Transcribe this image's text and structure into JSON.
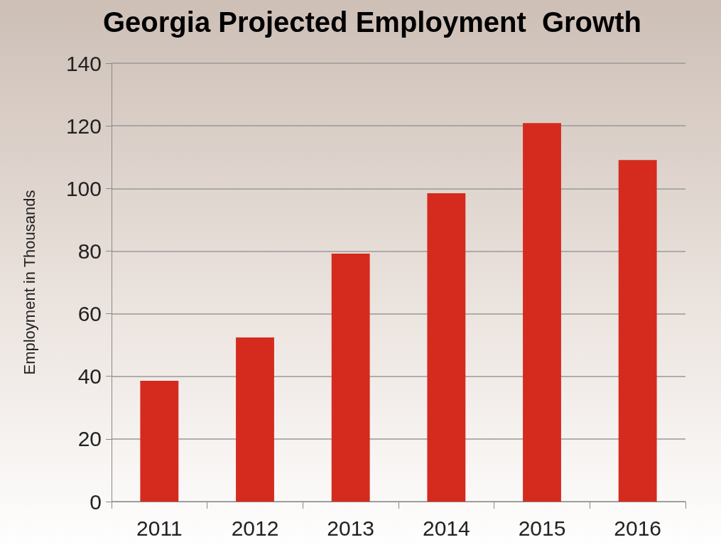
{
  "chart_data": {
    "type": "bar",
    "title": "Georgia Projected Employment  Growth",
    "ylabel": "Employment in Thousands",
    "categories": [
      "2011",
      "2012",
      "2013",
      "2014",
      "2015",
      "2016"
    ],
    "values": [
      38.6,
      52.4,
      79.2,
      98.5,
      120.9,
      109.1
    ],
    "color": "#d52b1e",
    "ylim": [
      0,
      140
    ],
    "yticks": [
      0,
      20,
      40,
      60,
      80,
      100,
      120,
      140
    ],
    "grid": "y"
  }
}
